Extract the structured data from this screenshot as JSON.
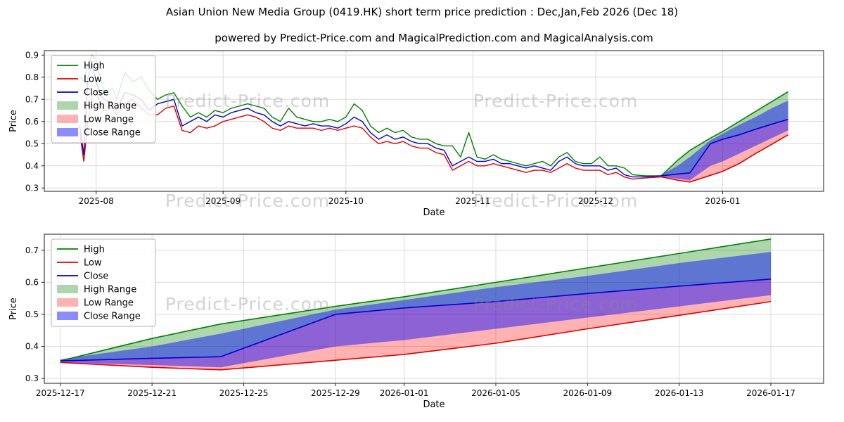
{
  "page": {
    "title": "Asian Union New Media Group (0419.HK) short term price prediction : Dec,Jan,Feb 2026 (Dec 18)",
    "subtitle": "powered by Predict-Price.com and MagicalPrediction.com and MagicalAnalysis.com"
  },
  "watermark": {
    "text": "Predict-Price.com"
  },
  "colors": {
    "high": "#008000",
    "low": "#dd0000",
    "close": "#0000cd",
    "high_range": "#008000",
    "low_range": "#ff0000",
    "close_range": "#0000ff",
    "grid": "#d9d9d9",
    "spine": "#1a1a1a"
  },
  "legend": {
    "items": [
      {
        "label": "High",
        "type": "line",
        "color": "#008000"
      },
      {
        "label": "Low",
        "type": "line",
        "color": "#dd0000"
      },
      {
        "label": "Close",
        "type": "line",
        "color": "#0000cd"
      },
      {
        "label": "High Range",
        "type": "patch",
        "color": "#008000",
        "opacity": 0.32
      },
      {
        "label": "Low Range",
        "type": "patch",
        "color": "#ff0000",
        "opacity": 0.3
      },
      {
        "label": "Close Range",
        "type": "patch",
        "color": "#0000ff",
        "opacity": 0.45
      }
    ]
  },
  "chart_data": [
    {
      "name": "history-and-forecast",
      "type": "line",
      "xlabel": "Date",
      "ylabel": "Price",
      "xlim": [
        -12.65,
        177.65
      ],
      "ylim": [
        0.285,
        0.92
      ],
      "grid": true,
      "legend_position": "upper-left",
      "xtick_pos": [
        0,
        31,
        61,
        92,
        122,
        153
      ],
      "xtick_labels": [
        "2025-08",
        "2025-09",
        "2025-10",
        "2025-11",
        "2025-12",
        "2026-01"
      ],
      "ytick_vals": [
        0.3,
        0.4,
        0.5,
        0.6,
        0.7,
        0.8,
        0.9
      ],
      "ytick_labels": [
        "0.3",
        "0.4",
        "0.5",
        "0.6",
        "0.7",
        "0.8",
        "0.9"
      ],
      "bands": [
        {
          "name": "high-range",
          "color": "#008000",
          "opacity": 0.32,
          "x": [
            138,
            142,
            145,
            150,
            153,
            157,
            161,
            165,
            169
          ],
          "upper": [
            0.355,
            0.425,
            0.47,
            0.525,
            0.555,
            0.6,
            0.645,
            0.69,
            0.735
          ],
          "lower": [
            0.355,
            0.363,
            0.368,
            0.5,
            0.52,
            0.54,
            0.565,
            0.588,
            0.61
          ]
        },
        {
          "name": "low-range",
          "color": "#ff0000",
          "opacity": 0.3,
          "x": [
            138,
            142,
            145,
            150,
            153,
            157,
            161,
            165,
            169
          ],
          "upper": [
            0.355,
            0.363,
            0.368,
            0.5,
            0.52,
            0.54,
            0.565,
            0.588,
            0.61
          ],
          "lower": [
            0.35,
            0.335,
            0.327,
            0.357,
            0.375,
            0.41,
            0.455,
            0.497,
            0.54
          ]
        },
        {
          "name": "close-range",
          "color": "#0000ff",
          "opacity": 0.45,
          "x": [
            138,
            142,
            145,
            150,
            153,
            157,
            161,
            165,
            169
          ],
          "upper": [
            0.36,
            0.4,
            0.44,
            0.515,
            0.545,
            0.585,
            0.62,
            0.66,
            0.695
          ],
          "lower": [
            0.35,
            0.342,
            0.335,
            0.4,
            0.42,
            0.455,
            0.49,
            0.525,
            0.56
          ]
        }
      ],
      "series": [
        {
          "name": "high",
          "color": "#008000",
          "width": 1.4,
          "x": [
            -4,
            -3,
            -2,
            -1,
            0,
            1,
            2,
            4,
            5,
            7,
            9,
            11,
            13,
            15,
            17,
            19,
            21,
            23,
            25,
            27,
            29,
            31,
            33,
            35,
            37,
            39,
            41,
            43,
            45,
            47,
            49,
            51,
            53,
            55,
            57,
            59,
            61,
            63,
            65,
            67,
            69,
            71,
            73,
            75,
            77,
            79,
            81,
            83,
            85,
            87,
            89,
            91,
            93,
            95,
            97,
            99,
            101,
            103,
            105,
            107,
            109,
            111,
            113,
            115,
            117,
            119,
            121,
            123,
            125,
            127,
            129,
            131,
            134,
            138
          ],
          "y": [
            0.8,
            0.78,
            0.86,
            0.9,
            0.88,
            0.8,
            0.73,
            0.75,
            0.7,
            0.82,
            0.78,
            0.8,
            0.74,
            0.7,
            0.72,
            0.73,
            0.67,
            0.62,
            0.64,
            0.62,
            0.65,
            0.64,
            0.66,
            0.67,
            0.68,
            0.67,
            0.66,
            0.62,
            0.6,
            0.66,
            0.62,
            0.61,
            0.6,
            0.6,
            0.61,
            0.6,
            0.62,
            0.68,
            0.65,
            0.58,
            0.55,
            0.57,
            0.55,
            0.56,
            0.53,
            0.52,
            0.52,
            0.5,
            0.49,
            0.49,
            0.44,
            0.55,
            0.44,
            0.43,
            0.45,
            0.43,
            0.42,
            0.41,
            0.4,
            0.41,
            0.42,
            0.4,
            0.44,
            0.46,
            0.42,
            0.41,
            0.41,
            0.44,
            0.4,
            0.4,
            0.39,
            0.36,
            0.355,
            0.355
          ]
        },
        {
          "name": "low",
          "color": "#dd0000",
          "width": 1.4,
          "x": [
            -4,
            -3,
            -2,
            -1,
            0,
            1,
            2,
            4,
            5,
            7,
            9,
            11,
            13,
            15,
            17,
            19,
            21,
            23,
            25,
            27,
            29,
            31,
            33,
            35,
            37,
            39,
            41,
            43,
            45,
            47,
            49,
            51,
            53,
            55,
            57,
            59,
            61,
            63,
            65,
            67,
            69,
            71,
            73,
            75,
            77,
            79,
            81,
            83,
            85,
            87,
            89,
            91,
            93,
            95,
            97,
            99,
            101,
            103,
            105,
            107,
            109,
            111,
            113,
            115,
            117,
            119,
            121,
            123,
            125,
            127,
            129,
            131,
            134,
            138
          ],
          "y": [
            0.55,
            0.42,
            0.6,
            0.72,
            0.74,
            0.68,
            0.65,
            0.66,
            0.63,
            0.68,
            0.7,
            0.66,
            0.63,
            0.63,
            0.66,
            0.67,
            0.56,
            0.55,
            0.58,
            0.57,
            0.58,
            0.6,
            0.61,
            0.62,
            0.63,
            0.62,
            0.6,
            0.57,
            0.56,
            0.58,
            0.57,
            0.57,
            0.57,
            0.56,
            0.57,
            0.56,
            0.57,
            0.58,
            0.57,
            0.53,
            0.5,
            0.51,
            0.5,
            0.51,
            0.49,
            0.48,
            0.48,
            0.46,
            0.45,
            0.38,
            0.4,
            0.42,
            0.4,
            0.4,
            0.41,
            0.4,
            0.39,
            0.38,
            0.37,
            0.38,
            0.38,
            0.37,
            0.39,
            0.41,
            0.39,
            0.38,
            0.38,
            0.38,
            0.36,
            0.37,
            0.35,
            0.34,
            0.345,
            0.35
          ]
        },
        {
          "name": "close",
          "color": "#0000cd",
          "width": 1.4,
          "x": [
            -4,
            -3,
            -2,
            -1,
            0,
            1,
            2,
            4,
            5,
            7,
            9,
            11,
            13,
            15,
            17,
            19,
            21,
            23,
            25,
            27,
            29,
            31,
            33,
            35,
            37,
            39,
            41,
            43,
            45,
            47,
            49,
            51,
            53,
            55,
            57,
            59,
            61,
            63,
            65,
            67,
            69,
            71,
            73,
            75,
            77,
            79,
            81,
            83,
            85,
            87,
            89,
            91,
            93,
            95,
            97,
            99,
            101,
            103,
            105,
            107,
            109,
            111,
            113,
            115,
            117,
            119,
            121,
            123,
            125,
            127,
            129,
            131,
            134,
            138
          ],
          "y": [
            0.58,
            0.45,
            0.8,
            0.86,
            0.78,
            0.72,
            0.7,
            0.68,
            0.65,
            0.73,
            0.72,
            0.7,
            0.65,
            0.68,
            0.69,
            0.7,
            0.58,
            0.6,
            0.62,
            0.6,
            0.63,
            0.62,
            0.64,
            0.65,
            0.66,
            0.64,
            0.63,
            0.6,
            0.58,
            0.6,
            0.59,
            0.58,
            0.59,
            0.58,
            0.58,
            0.57,
            0.59,
            0.62,
            0.6,
            0.55,
            0.52,
            0.54,
            0.52,
            0.53,
            0.51,
            0.5,
            0.5,
            0.48,
            0.47,
            0.4,
            0.42,
            0.44,
            0.42,
            0.42,
            0.43,
            0.41,
            0.41,
            0.4,
            0.39,
            0.4,
            0.39,
            0.38,
            0.42,
            0.44,
            0.41,
            0.4,
            0.4,
            0.4,
            0.38,
            0.39,
            0.36,
            0.35,
            0.35,
            0.355
          ]
        },
        {
          "name": "high-forecast",
          "color": "#008000",
          "width": 1.6,
          "x": [
            138,
            142,
            145,
            150,
            153,
            157,
            161,
            165,
            169
          ],
          "y": [
            0.355,
            0.425,
            0.47,
            0.525,
            0.555,
            0.6,
            0.645,
            0.69,
            0.735
          ]
        },
        {
          "name": "low-forecast",
          "color": "#dd0000",
          "width": 1.6,
          "x": [
            138,
            142,
            145,
            150,
            153,
            157,
            161,
            165,
            169
          ],
          "y": [
            0.35,
            0.335,
            0.327,
            0.357,
            0.375,
            0.41,
            0.455,
            0.497,
            0.54
          ]
        },
        {
          "name": "close-forecast",
          "color": "#0000cd",
          "width": 1.6,
          "x": [
            138,
            142,
            145,
            150,
            153,
            157,
            161,
            165,
            169
          ],
          "y": [
            0.355,
            0.363,
            0.368,
            0.5,
            0.52,
            0.54,
            0.565,
            0.588,
            0.61
          ]
        }
      ]
    },
    {
      "name": "forecast-zoom",
      "type": "line",
      "xlabel": "Date",
      "ylabel": "Price",
      "xlim": [
        137.3,
        171.3
      ],
      "ylim": [
        0.285,
        0.75
      ],
      "grid": true,
      "legend_position": "upper-left",
      "xtick_pos": [
        138,
        142,
        146,
        150,
        153,
        157,
        161,
        165,
        169
      ],
      "xtick_labels": [
        "2025-12-17",
        "2025-12-21",
        "2025-12-25",
        "2025-12-29",
        "2026-01-01",
        "2026-01-05",
        "2026-01-09",
        "2026-01-13",
        "2026-01-17"
      ],
      "ytick_vals": [
        0.3,
        0.4,
        0.5,
        0.6,
        0.7
      ],
      "ytick_labels": [
        "0.3",
        "0.4",
        "0.5",
        "0.6",
        "0.7"
      ],
      "bands": [
        {
          "name": "high-range",
          "color": "#008000",
          "opacity": 0.32,
          "x": [
            138,
            142,
            145,
            150,
            153,
            157,
            161,
            165,
            169
          ],
          "upper": [
            0.355,
            0.425,
            0.47,
            0.525,
            0.555,
            0.6,
            0.645,
            0.69,
            0.735
          ],
          "lower": [
            0.355,
            0.363,
            0.368,
            0.5,
            0.52,
            0.54,
            0.565,
            0.588,
            0.61
          ]
        },
        {
          "name": "low-range",
          "color": "#ff0000",
          "opacity": 0.3,
          "x": [
            138,
            142,
            145,
            150,
            153,
            157,
            161,
            165,
            169
          ],
          "upper": [
            0.355,
            0.363,
            0.368,
            0.5,
            0.52,
            0.54,
            0.565,
            0.588,
            0.61
          ],
          "lower": [
            0.35,
            0.335,
            0.327,
            0.357,
            0.375,
            0.41,
            0.455,
            0.497,
            0.54
          ]
        },
        {
          "name": "close-range",
          "color": "#0000ff",
          "opacity": 0.45,
          "x": [
            138,
            142,
            145,
            150,
            153,
            157,
            161,
            165,
            169
          ],
          "upper": [
            0.36,
            0.4,
            0.44,
            0.515,
            0.545,
            0.585,
            0.62,
            0.66,
            0.695
          ],
          "lower": [
            0.35,
            0.342,
            0.335,
            0.4,
            0.42,
            0.455,
            0.49,
            0.525,
            0.56
          ]
        }
      ],
      "series": [
        {
          "name": "high-forecast",
          "color": "#008000",
          "width": 1.6,
          "x": [
            138,
            142,
            145,
            150,
            153,
            157,
            161,
            165,
            169
          ],
          "y": [
            0.355,
            0.425,
            0.47,
            0.525,
            0.555,
            0.6,
            0.645,
            0.69,
            0.735
          ]
        },
        {
          "name": "low-forecast",
          "color": "#dd0000",
          "width": 1.6,
          "x": [
            138,
            142,
            145,
            150,
            153,
            157,
            161,
            165,
            169
          ],
          "y": [
            0.35,
            0.335,
            0.327,
            0.357,
            0.375,
            0.41,
            0.455,
            0.497,
            0.54
          ]
        },
        {
          "name": "close-forecast",
          "color": "#0000cd",
          "width": 1.6,
          "x": [
            138,
            142,
            145,
            150,
            153,
            157,
            161,
            165,
            169
          ],
          "y": [
            0.355,
            0.363,
            0.368,
            0.5,
            0.52,
            0.54,
            0.565,
            0.588,
            0.61
          ]
        }
      ]
    }
  ]
}
